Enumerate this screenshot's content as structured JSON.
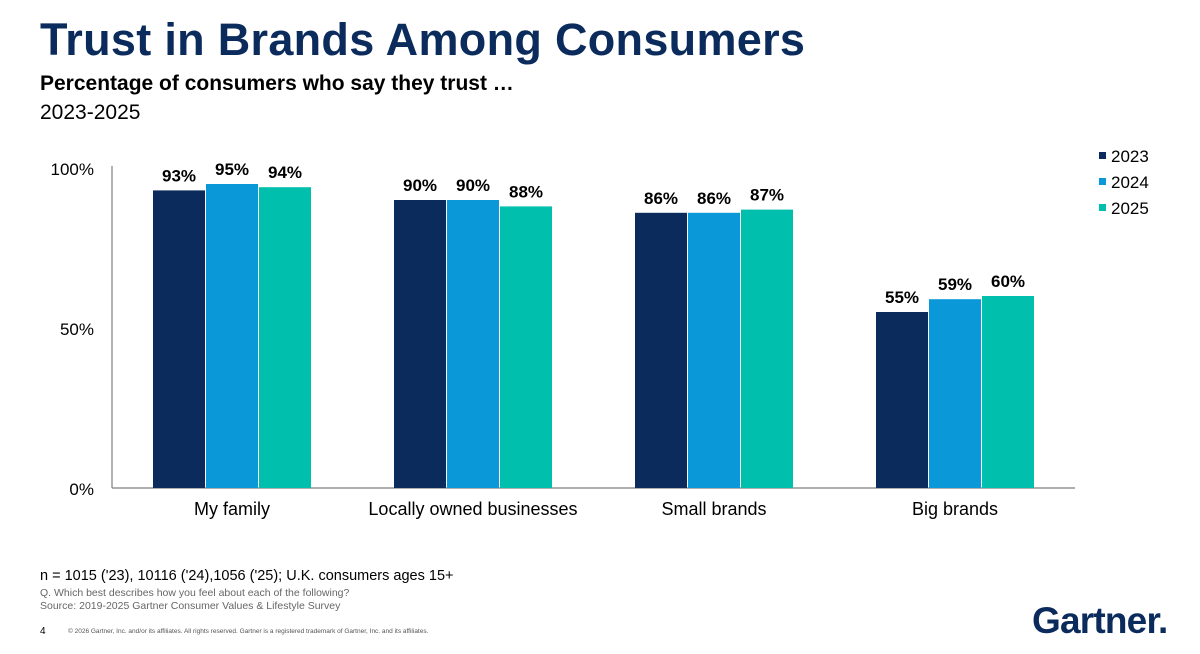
{
  "header": {
    "title": "Trust in Brands Among Consumers",
    "subtitle": "Percentage of consumers who say they trust …",
    "period": "2023-2025"
  },
  "chart_data": {
    "type": "bar",
    "categories": [
      "My family",
      "Locally owned businesses",
      "Small brands",
      "Big brands"
    ],
    "series": [
      {
        "name": "2023",
        "values": [
          93,
          90,
          86,
          55
        ],
        "color": "#0a2b5c"
      },
      {
        "name": "2024",
        "values": [
          95,
          90,
          86,
          59
        ],
        "color": "#0a98d8"
      },
      {
        "name": "2025",
        "values": [
          94,
          88,
          87,
          60
        ],
        "color": "#00c0ad"
      }
    ],
    "data_labels": [
      [
        "93%",
        "95%",
        "94%"
      ],
      [
        "90%",
        "90%",
        "88%"
      ],
      [
        "86%",
        "86%",
        "87%"
      ],
      [
        "55%",
        "59%",
        "60%"
      ]
    ],
    "ylim": [
      0,
      100
    ],
    "yticks": [
      0,
      50,
      100
    ],
    "ytick_labels": [
      "0%",
      "50%",
      "100%"
    ],
    "legend_position": "top-right",
    "grid": false
  },
  "footer": {
    "sample": "n = 1015 ('23), 10116 ('24),1056 ('25); U.K. consumers ages 15+",
    "question": "Q. Which best describes how you feel about each of the following?",
    "source": "Source: 2019-2025 Gartner Consumer Values & Lifestyle Survey",
    "page_number": "4",
    "copyright": "© 2026 Gartner, Inc. and/or its affiliates. All rights reserved. Gartner is a registered trademark of Gartner, Inc. and its affiliates."
  },
  "brand": {
    "logo_text": "Gartner."
  }
}
